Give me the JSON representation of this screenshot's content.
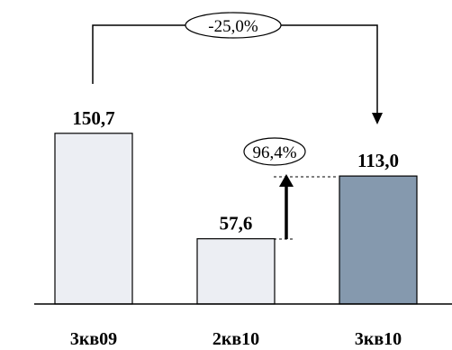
{
  "chart_data": {
    "type": "bar",
    "categories": [
      "3кв09",
      "2кв10",
      "3кв10"
    ],
    "values": [
      150.7,
      57.6,
      113.0
    ],
    "value_labels": [
      "150,7",
      "57,6",
      "113,0"
    ],
    "bar_colors": [
      "#eceef3",
      "#eceef3",
      "#8599ae"
    ],
    "ylim": [
      0,
      180
    ],
    "title": "",
    "xlabel": "",
    "ylabel": "",
    "grid": false,
    "annotations": [
      {
        "label": "-25,0%",
        "from": "3кв09",
        "to": "3кв10",
        "kind": "bracket-arrow"
      },
      {
        "label": "96,4%",
        "from": "2кв10",
        "to": "3кв10",
        "kind": "vertical-growth-arrow"
      }
    ]
  },
  "colors": {
    "outline": "#000000",
    "accent_bar": "#8599ae",
    "light_bar": "#eceef3"
  }
}
